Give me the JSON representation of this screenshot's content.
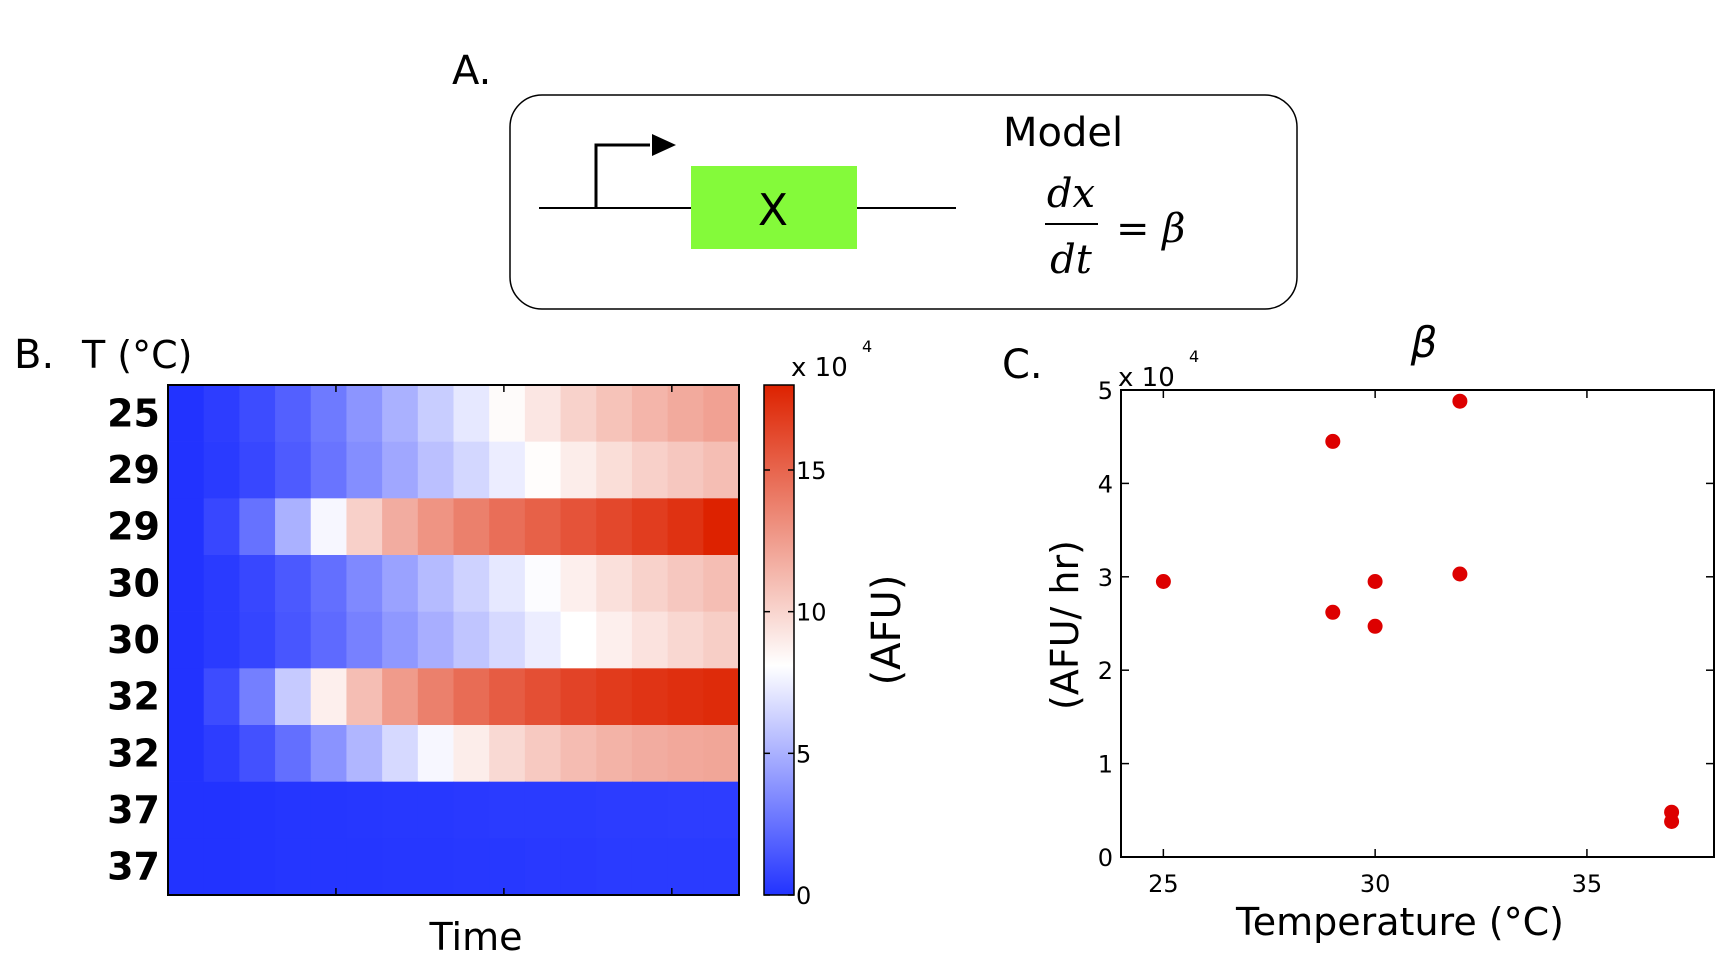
{
  "panel_a": {
    "letter": "A.",
    "gene_label": "X",
    "model_title": "Model",
    "equation": {
      "numerator": "dx",
      "denominator": "dt",
      "rhs": "= β"
    },
    "colors": {
      "gene_box": "#84fa3a"
    }
  },
  "chart_data": [
    {
      "type": "heatmap",
      "panel_letter": "B.",
      "row_axis_title": "T (°C)",
      "rows": [
        "25",
        "29",
        "29",
        "30",
        "30",
        "32",
        "32",
        "37",
        "37"
      ],
      "xlabel": "Time",
      "colorbar": {
        "label": "(AFU)",
        "exponent_label": "x 10",
        "exponent": "4",
        "ticks": [
          0,
          5,
          10,
          15
        ],
        "range": [
          0,
          18
        ]
      },
      "colors": {
        "low": "#2233ff",
        "mid": "#ffffff",
        "high": "#dd2200"
      },
      "series": [
        {
          "values": [
            0,
            0.4,
            1.0,
            1.8,
            2.8,
            3.9,
            5.0,
            6.1,
            7.2,
            8.3,
            9.2,
            10.1,
            10.8,
            11.4,
            11.9,
            12.3
          ]
        },
        {
          "values": [
            0,
            0.3,
            0.8,
            1.6,
            2.6,
            3.6,
            4.6,
            5.6,
            6.5,
            7.4,
            8.2,
            8.9,
            9.6,
            10.2,
            10.6,
            11.0
          ]
        },
        {
          "values": [
            0,
            0.8,
            2.5,
            5.0,
            7.8,
            10.2,
            11.8,
            12.9,
            13.8,
            14.6,
            15.2,
            15.8,
            16.3,
            16.8,
            17.3,
            18.0
          ]
        },
        {
          "values": [
            0,
            0.3,
            0.8,
            1.5,
            2.4,
            3.4,
            4.4,
            5.4,
            6.3,
            7.2,
            8.0,
            8.8,
            9.5,
            10.1,
            10.6,
            11.0
          ]
        },
        {
          "values": [
            0,
            0.3,
            0.7,
            1.4,
            2.2,
            3.1,
            4.0,
            4.9,
            5.8,
            6.6,
            7.4,
            8.1,
            8.8,
            9.4,
            9.9,
            10.3
          ]
        },
        {
          "values": [
            0,
            1.0,
            3.0,
            6.0,
            8.8,
            11.0,
            12.6,
            13.8,
            14.7,
            15.4,
            16.0,
            16.5,
            16.9,
            17.2,
            17.4,
            17.6
          ]
        },
        {
          "values": [
            0,
            0.4,
            1.2,
            2.4,
            3.8,
            5.2,
            6.6,
            7.8,
            8.9,
            9.8,
            10.5,
            11.1,
            11.5,
            11.8,
            12.0,
            12.1
          ]
        },
        {
          "values": [
            0,
            0,
            0.05,
            0.1,
            0.1,
            0.15,
            0.2,
            0.2,
            0.25,
            0.3,
            0.3,
            0.3,
            0.35,
            0.35,
            0.4,
            0.4
          ]
        },
        {
          "values": [
            0,
            0,
            0.05,
            0.1,
            0.1,
            0.1,
            0.15,
            0.15,
            0.2,
            0.2,
            0.25,
            0.25,
            0.3,
            0.3,
            0.3,
            0.3
          ]
        }
      ]
    },
    {
      "type": "scatter",
      "panel_letter": "C.",
      "title": "β",
      "xlabel": "Temperature (°C)",
      "ylabel": "(AFU/ hr)",
      "y_exponent_label": "x 10",
      "y_exponent": "4",
      "xlim": [
        24,
        38
      ],
      "ylim": [
        0,
        5
      ],
      "xticks": [
        25,
        30,
        35
      ],
      "yticks": [
        0,
        1,
        2,
        3,
        4,
        5
      ],
      "marker_color": "#dd0000",
      "points": [
        {
          "x": 25,
          "y": 2.95
        },
        {
          "x": 29,
          "y": 4.45
        },
        {
          "x": 29,
          "y": 2.62
        },
        {
          "x": 30,
          "y": 2.95
        },
        {
          "x": 30,
          "y": 2.47
        },
        {
          "x": 32,
          "y": 4.88
        },
        {
          "x": 32,
          "y": 3.03
        },
        {
          "x": 37,
          "y": 0.48
        },
        {
          "x": 37,
          "y": 0.38
        }
      ]
    }
  ]
}
